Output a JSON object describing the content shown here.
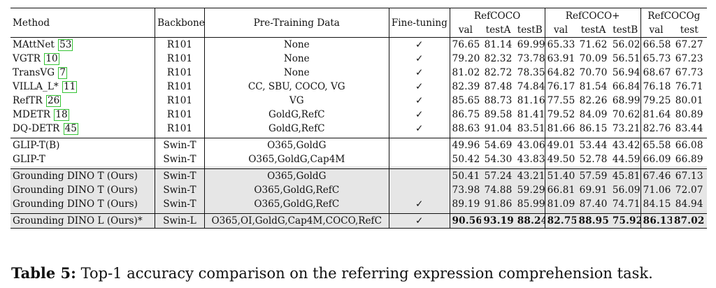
{
  "headers": {
    "method": "Method",
    "backbone": "Backbone",
    "pretraining": "Pre-Training Data",
    "finetuning": "Fine-tuning",
    "groups": [
      "RefCOCO",
      "RefCOCO+",
      "RefCOCOg"
    ],
    "subcols": [
      "val",
      "testA",
      "testB",
      "val",
      "testA",
      "testB",
      "val",
      "test"
    ]
  },
  "sections": [
    {
      "rows": [
        {
          "method": "MAttNet",
          "ref": "53",
          "backbone": "R101",
          "data": "None",
          "ft": "✓",
          "vals": [
            "76.65",
            "81.14",
            "69.99",
            "65.33",
            "71.62",
            "56.02",
            "66.58",
            "67.27"
          ]
        },
        {
          "method": "VGTR",
          "ref": "10",
          "backbone": "R101",
          "data": "None",
          "ft": "✓",
          "vals": [
            "79.20",
            "82.32",
            "73.78",
            "63.91",
            "70.09",
            "56.51",
            "65.73",
            "67.23"
          ]
        },
        {
          "method": "TransVG",
          "ref": "7",
          "backbone": "R101",
          "data": "None",
          "ft": "✓",
          "vals": [
            "81.02",
            "82.72",
            "78.35",
            "64.82",
            "70.70",
            "56.94",
            "68.67",
            "67.73"
          ]
        },
        {
          "method": "VILLA_L*",
          "ref": "11",
          "backbone": "R101",
          "data": "CC, SBU, COCO, VG",
          "ft": "✓",
          "vals": [
            "82.39",
            "87.48",
            "74.84",
            "76.17",
            "81.54",
            "66.84",
            "76.18",
            "76.71"
          ]
        },
        {
          "method": "RefTR",
          "ref": "26",
          "backbone": "R101",
          "data": "VG",
          "ft": "✓",
          "vals": [
            "85.65",
            "88.73",
            "81.16",
            "77.55",
            "82.26",
            "68.99",
            "79.25",
            "80.01"
          ]
        },
        {
          "method": "MDETR",
          "ref": "18",
          "backbone": "R101",
          "data": "GoldG,RefC",
          "ft": "✓",
          "vals": [
            "86.75",
            "89.58",
            "81.41",
            "79.52",
            "84.09",
            "70.62",
            "81.64",
            "80.89"
          ]
        },
        {
          "method": "DQ-DETR",
          "ref": "45",
          "backbone": "R101",
          "data": "GoldG,RefC",
          "ft": "✓",
          "vals": [
            "88.63",
            "91.04",
            "83.51",
            "81.66",
            "86.15",
            "73.21",
            "82.76",
            "83.44"
          ]
        }
      ]
    },
    {
      "rows": [
        {
          "method": "GLIP-T(B)",
          "backbone": "Swin-T",
          "data": "O365,GoldG",
          "ft": "",
          "vals": [
            "49.96",
            "54.69",
            "43.06",
            "49.01",
            "53.44",
            "43.42",
            "65.58",
            "66.08"
          ]
        },
        {
          "method": "GLIP-T",
          "backbone": "Swin-T",
          "data": "O365,GoldG,Cap4M",
          "ft": "",
          "vals": [
            "50.42",
            "54.30",
            "43.83",
            "49.50",
            "52.78",
            "44.59",
            "66.09",
            "66.89"
          ]
        }
      ]
    },
    {
      "rows": [
        {
          "method": "Grounding DINO T (Ours)",
          "backbone": "Swin-T",
          "data": "O365,GoldG",
          "ft": "",
          "vals": [
            "50.41",
            "57.24",
            "43.21",
            "51.40",
            "57.59",
            "45.81",
            "67.46",
            "67.13"
          ]
        },
        {
          "method": "Grounding DINO T (Ours)",
          "backbone": "Swin-T",
          "data": "O365,GoldG,RefC",
          "ft": "",
          "vals": [
            "73.98",
            "74.88",
            "59.29",
            "66.81",
            "69.91",
            "56.09",
            "71.06",
            "72.07"
          ]
        },
        {
          "method": "Grounding DINO T (Ours)",
          "backbone": "Swin-T",
          "data": "O365,GoldG,RefC",
          "ft": "✓",
          "vals": [
            "89.19",
            "91.86",
            "85.99",
            "81.09",
            "87.40",
            "74.71",
            "84.15",
            "84.94"
          ]
        }
      ]
    },
    {
      "rows": [
        {
          "method": "Grounding DINO L (Ours)*",
          "backbone": "Swin-L",
          "data": "O365,OI,GoldG,Cap4M,COCO,RefC",
          "ft": "✓",
          "vals": [
            "90.56",
            "93.19",
            "88.24",
            "82.75",
            "88.95",
            "75.92",
            "86.13",
            "87.02"
          ]
        }
      ]
    }
  ],
  "caption": {
    "label": "Table 5:",
    "text": "Top-1 accuracy comparison on the referring expression comprehension task."
  }
}
